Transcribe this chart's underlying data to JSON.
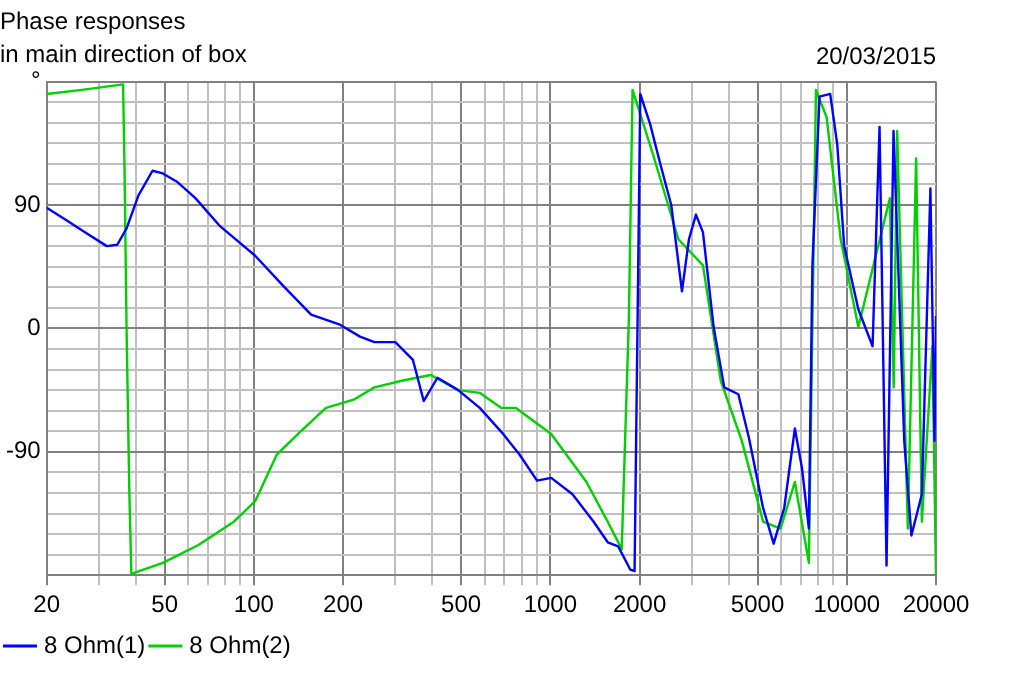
{
  "chart_data": {
    "type": "line",
    "title": "Phase responses",
    "subtitle": "in main direction of box",
    "annotations": [
      "20/03/2015"
    ],
    "log": "x",
    "grid": true,
    "legend": "bottom left",
    "marker": "none",
    "line_style": "solid",
    "xlim": [
      20,
      20000
    ],
    "xticks": [
      20,
      {
        "value": 30,
        "label": null
      },
      {
        "value": 40,
        "label": null
      },
      50,
      {
        "value": 60,
        "label": null
      },
      {
        "value": 70,
        "label": null
      },
      {
        "value": 80,
        "label": null
      },
      {
        "value": 90,
        "label": null
      },
      100,
      200,
      {
        "value": 300,
        "label": null
      },
      {
        "value": 400,
        "label": null
      },
      500,
      {
        "value": 600,
        "label": null
      },
      {
        "value": 700,
        "label": null
      },
      {
        "value": 800,
        "label": null
      },
      {
        "value": 900,
        "label": null
      },
      1000,
      2000,
      {
        "value": 3000,
        "label": null
      },
      {
        "value": 4000,
        "label": null
      },
      5000,
      {
        "value": 6000,
        "label": null
      },
      {
        "value": 7000,
        "label": null
      },
      {
        "value": 8000,
        "label": null
      },
      {
        "value": 9000,
        "label": null
      },
      10000,
      20000
    ],
    "ylim": [
      -180,
      180
    ],
    "yticks": [
      {
        "value": -180,
        "label": null
      },
      {
        "value": -165,
        "label": null
      },
      {
        "value": -150,
        "label": null
      },
      {
        "value": -135,
        "label": null
      },
      {
        "value": -120,
        "label": null
      },
      {
        "value": -105,
        "label": null
      },
      -90,
      {
        "value": -75,
        "label": null
      },
      {
        "value": -60,
        "label": null
      },
      {
        "value": -45,
        "label": null
      },
      {
        "value": -30,
        "label": null
      },
      {
        "value": -15,
        "label": null
      },
      0,
      {
        "value": 15,
        "label": null
      },
      {
        "value": 30,
        "label": null
      },
      {
        "value": 45,
        "label": null
      },
      {
        "value": 60,
        "label": null
      },
      {
        "value": 75,
        "label": null
      },
      90,
      {
        "value": 105,
        "label": null
      },
      {
        "value": 120,
        "label": null
      },
      {
        "value": 135,
        "label": null
      },
      {
        "value": 150,
        "label": null
      },
      {
        "value": 165,
        "label": null
      },
      {
        "value": 180,
        "label": "°"
      }
    ],
    "series": [
      {
        "name": "8 Ohm(1)",
        "color": "#0000ff",
        "x": [
          20,
          22.9,
          27,
          31.9,
          34.6,
          37.2,
          40.8,
          45.5,
          49.3,
          55,
          63.5,
          76.5,
          101,
          125.6,
          156,
          194,
          228,
          255,
          300,
          344,
          374,
          416,
          489,
          578,
          687,
          787,
          902,
          1007,
          1188,
          1400,
          1562,
          1694,
          1862,
          1924,
          2011,
          2171,
          2356,
          2558,
          2780,
          2935,
          3100,
          3273,
          3556,
          3861,
          4308,
          4678,
          5221,
          5667,
          6152,
          6683,
          7063,
          7450,
          7658,
          8092,
          8790,
          9290,
          9800,
          10940,
          12220,
          12900,
          13620,
          14380,
          15630,
          16520,
          17920,
          19150,
          19770,
          20000
        ],
        "values": [
          88,
          80,
          70,
          60,
          61,
          73,
          97,
          115,
          113,
          107,
          95,
          75,
          53,
          31,
          10,
          3,
          -6,
          -10,
          -10,
          -23,
          -53,
          -36,
          -45,
          -58,
          -76,
          -92,
          -111,
          -109,
          -121,
          -141,
          -156,
          -159,
          -176,
          -177,
          171,
          149,
          119,
          90,
          27,
          65,
          83,
          70,
          1,
          -43,
          -48,
          -80,
          -131,
          -157,
          -131,
          -73,
          -102,
          -146,
          46,
          169,
          171,
          134,
          60,
          14,
          -13,
          147,
          -173,
          144,
          -82,
          -151,
          -121,
          102,
          -82,
          9
        ]
      },
      {
        "name": "8 Ohm(2)",
        "color": "#00d000",
        "x": [
          20,
          26.3,
          36.2,
          36.6,
          37.2,
          38,
          38.6,
          49.3,
          65,
          85.6,
          101,
          119.5,
          140.9,
          175,
          217,
          255,
          318,
          395,
          489,
          578,
          683,
          766,
          1007,
          1324,
          1562,
          1741,
          1840,
          1894,
          2234,
          2704,
          3273,
          3756,
          4426,
          5221,
          5980,
          6683,
          7450,
          7873,
          8550,
          9540,
          10940,
          13980,
          14400,
          14790,
          16070,
          17140,
          17920,
          19450,
          20000
        ],
        "values": [
          171,
          174,
          178,
          119,
          -1,
          -119,
          -179,
          -171,
          -158,
          -141,
          -126,
          -92,
          -77,
          -58,
          -52,
          -43,
          -38,
          -34,
          -45,
          -47,
          -58,
          -58,
          -77,
          -112,
          -141,
          -161,
          6,
          174,
          125,
          65,
          46,
          -38,
          -82,
          -141,
          -146,
          -112,
          -171,
          174,
          154,
          65,
          1,
          95,
          -43,
          144,
          -146,
          124,
          -141,
          -13,
          -180
        ]
      }
    ]
  }
}
